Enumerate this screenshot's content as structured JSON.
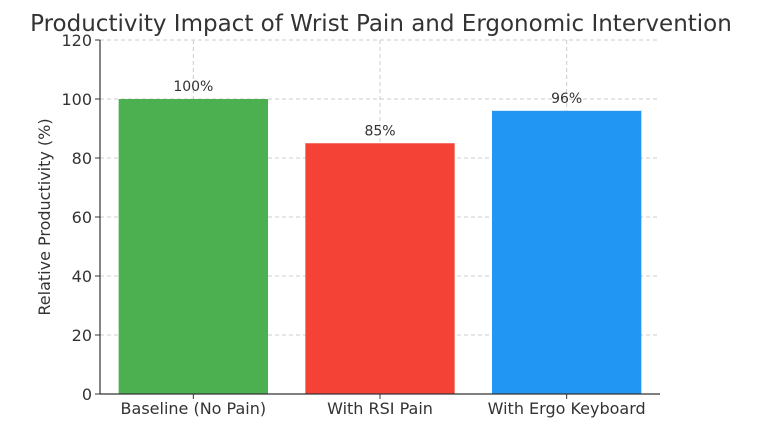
{
  "chart_data": {
    "type": "bar",
    "title": "Productivity Impact of Wrist Pain and Ergonomic Intervention",
    "xlabel": "",
    "ylabel": "Relative Productivity (%)",
    "categories": [
      "Baseline (No Pain)",
      "With RSI Pain",
      "With Ergo Keyboard"
    ],
    "values": [
      100,
      85,
      96
    ],
    "value_labels": [
      "100%",
      "85%",
      "96%"
    ],
    "colors": [
      "#4caf50",
      "#f44336",
      "#2196f3"
    ],
    "ylim": [
      0,
      120
    ],
    "yticks": [
      0,
      20,
      40,
      60,
      80,
      100,
      120
    ],
    "grid": true,
    "legend": "none"
  }
}
